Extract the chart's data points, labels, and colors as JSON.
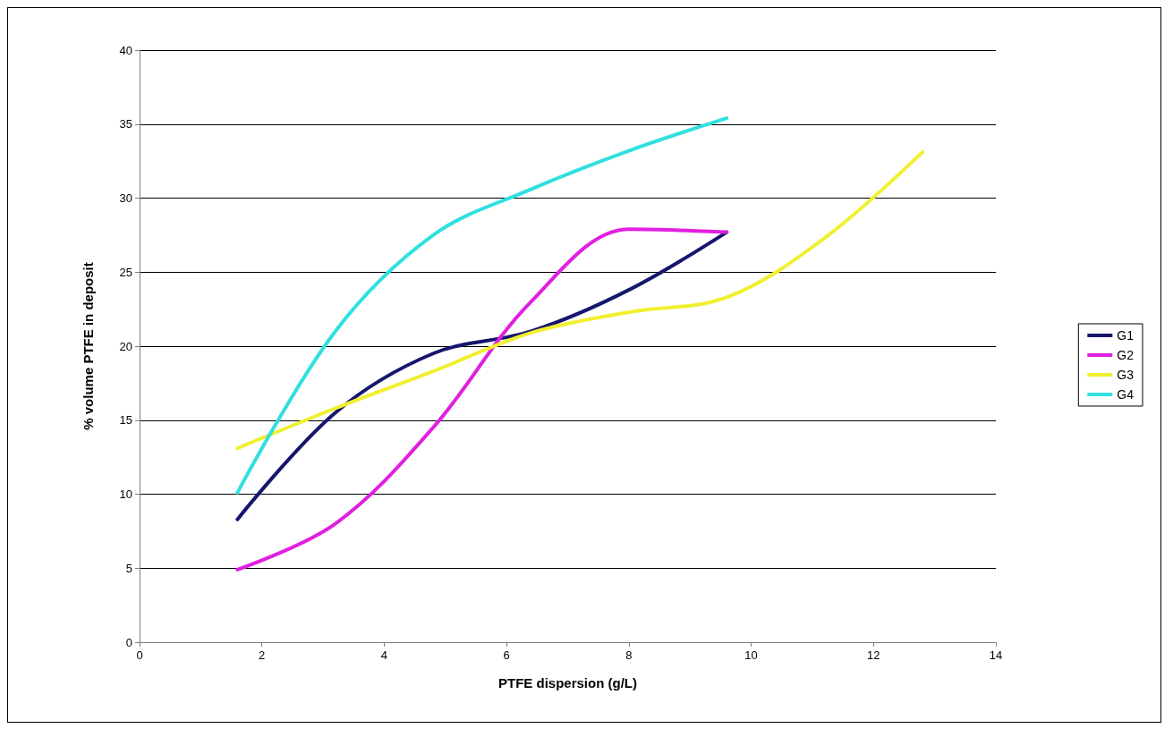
{
  "chart_data": {
    "type": "line",
    "xlabel": "PTFE dispersion (g/L)",
    "ylabel": "% volume PTFE in deposit",
    "xlim": [
      0,
      14
    ],
    "xticks": [
      0,
      2,
      4,
      6,
      8,
      10,
      12,
      14
    ],
    "ylim": [
      0,
      40
    ],
    "yticks": [
      0,
      5,
      10,
      15,
      20,
      25,
      30,
      35,
      40
    ],
    "grid": "y",
    "legend": "right",
    "marker": "none",
    "line_style": "solid",
    "series": [
      {
        "name": "G1",
        "color": "#16166e",
        "x": [
          1.6,
          3.2,
          4.8,
          6.4,
          8,
          9.6
        ],
        "values": [
          8.3,
          15.5,
          19.5,
          21,
          23.8,
          27.7
        ]
      },
      {
        "name": "G2",
        "color": "#e020e0",
        "x": [
          1.6,
          3.2,
          4.8,
          6.4,
          8,
          9.6
        ],
        "values": [
          4.9,
          8,
          14.5,
          23,
          27.9,
          27.7
        ]
      },
      {
        "name": "G3",
        "color": "#f0f030",
        "x": [
          1.6,
          3.2,
          4.8,
          6.4,
          8,
          9.6,
          11.2,
          12.8
        ],
        "values": [
          13.1,
          15.8,
          18.3,
          20.9,
          22.3,
          23.3,
          27.3,
          33.1
        ]
      },
      {
        "name": "G4",
        "color": "#30e0e0",
        "x": [
          1.6,
          3.2,
          4.8,
          6.4,
          8,
          9.6
        ],
        "values": [
          10.1,
          21,
          27.5,
          30.6,
          33.2,
          35.4
        ]
      }
    ]
  }
}
